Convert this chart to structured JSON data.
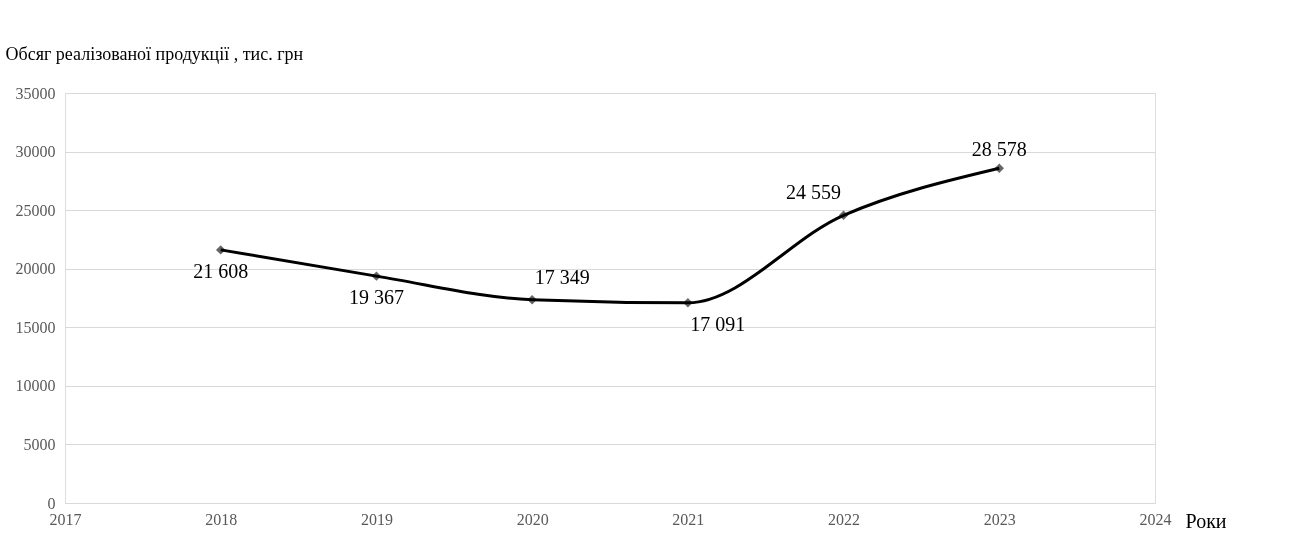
{
  "chart_data": {
    "type": "line",
    "ylabel": "Обсяг реалізованої продукції , тис. грн",
    "xlabel": "Роки",
    "x": [
      2018,
      2019,
      2020,
      2021,
      2022,
      2023
    ],
    "series": [
      {
        "color": "#000000",
        "values": [
          21608,
          19367,
          17349,
          17091,
          24559,
          28578
        ],
        "value_labels": [
          "21 608",
          "19 367",
          "17 349",
          "17 091",
          "24 559",
          "28 578"
        ]
      }
    ],
    "xlim": [
      2017,
      2024
    ],
    "xticks": [
      2017,
      2018,
      2019,
      2020,
      2021,
      2022,
      2023,
      2024
    ],
    "ylim": [
      0,
      35000
    ],
    "yticks": [
      0,
      5000,
      10000,
      15000,
      20000,
      25000,
      30000,
      35000
    ],
    "grid": "y",
    "marker": "diamond",
    "line_style": "solid"
  }
}
